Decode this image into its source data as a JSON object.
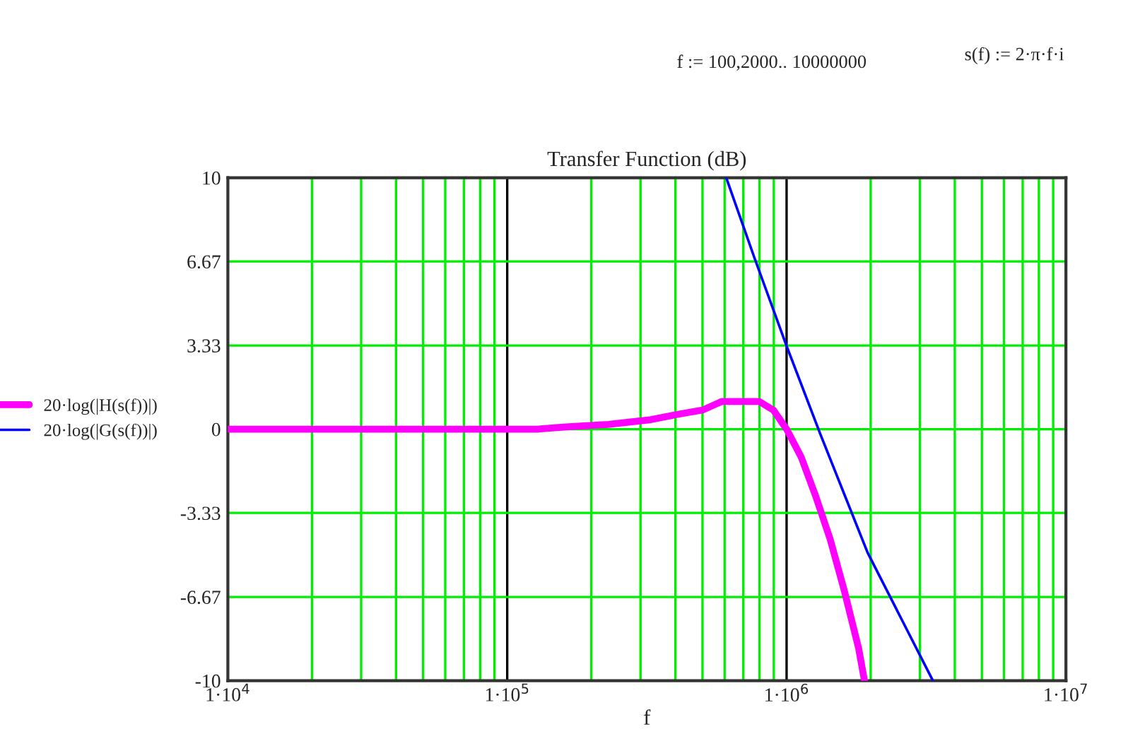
{
  "chart_data": {
    "type": "line",
    "title": "Transfer Function (dB)",
    "xlabel": "f",
    "annotations": [
      "f := 100,2000.. 10000000",
      "s(f) := 2·π·f·i"
    ],
    "log": "x",
    "xlim": [
      10000,
      10000000
    ],
    "xticks": [
      {
        "value": 10000,
        "label": "1·10$^{4}$"
      },
      {
        "value": 100000,
        "label": "1·10$^{5}$"
      },
      {
        "value": 1000000,
        "label": "1·10$^{6}$"
      },
      {
        "value": 10000000,
        "label": "1·10$^{7}$"
      }
    ],
    "ylim": [
      -10,
      10
    ],
    "yticks": [
      -10,
      -6.67,
      -3.33,
      0,
      3.33,
      6.67,
      10
    ],
    "grid": true,
    "legend": "left",
    "marker": "none",
    "series": [
      {
        "name": "20·log(|H(s(f))|)",
        "color": "#ff00ff",
        "x": [
          10000,
          128000,
          162000,
          230000,
          327000,
          412000,
          500000,
          585000,
          798000,
          897000,
          1000000,
          1130000,
          1270000,
          1430000,
          1610000,
          1810000,
          1900000
        ],
        "values": [
          0,
          0,
          0.09,
          0.19,
          0.38,
          0.6,
          0.76,
          1.1,
          1.1,
          0.76,
          0,
          -1.13,
          -2.65,
          -4.35,
          -6.43,
          -8.7,
          -10
        ]
      },
      {
        "name": "20·log(|G(s(f))|)",
        "color": "#0000ff",
        "x": [
          608000,
          768000,
          1000000,
          1320000,
          1950000,
          3340000
        ],
        "values": [
          10,
          6.8,
          3.31,
          -0.19,
          -4.91,
          -10
        ]
      }
    ]
  }
}
